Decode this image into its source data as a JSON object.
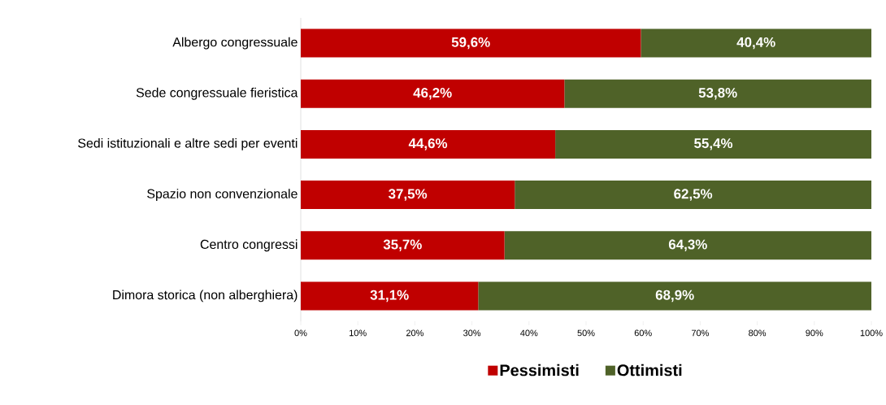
{
  "chart_data": {
    "type": "bar",
    "orientation": "horizontal",
    "stacked": true,
    "categories": [
      "Albergo congressuale",
      "Sede congressuale fieristica",
      "Sedi istituzionali e altre sedi per eventi",
      "Spazio non convenzionale",
      "Centro congressi",
      "Dimora storica (non alberghiera)"
    ],
    "series": [
      {
        "name": "Pessimisti",
        "color": "#c00000",
        "values": [
          59.6,
          46.2,
          44.6,
          37.5,
          35.7,
          31.1
        ],
        "value_labels": [
          "59,6%",
          "46,2%",
          "44,6%",
          "37,5%",
          "35,7%",
          "31,1%"
        ]
      },
      {
        "name": "Ottimisti",
        "color": "#4f6228",
        "values": [
          40.4,
          53.8,
          55.4,
          62.5,
          64.3,
          68.9
        ],
        "value_labels": [
          "40,4%",
          "53,8%",
          "55,4%",
          "62,5%",
          "64,3%",
          "68,9%"
        ]
      }
    ],
    "xlim": [
      0,
      100
    ],
    "xticks": [
      {
        "value": 0,
        "label": "0%"
      },
      {
        "value": 10,
        "label": "10%"
      },
      {
        "value": 20,
        "label": "20%"
      },
      {
        "value": 30,
        "label": "30%"
      },
      {
        "value": 40,
        "label": "40%"
      },
      {
        "value": 50,
        "label": "50%"
      },
      {
        "value": 60,
        "label": "60%"
      },
      {
        "value": 70,
        "label": "70%"
      },
      {
        "value": 80,
        "label": "80%"
      },
      {
        "value": 90,
        "label": "90%"
      },
      {
        "value": 100,
        "label": "100%"
      }
    ],
    "legend": "bottom"
  }
}
